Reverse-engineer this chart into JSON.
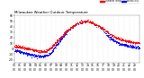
{
  "title": "Milwaukee Weather Outdoor Temperature",
  "legend_temp_color": "#ff0000",
  "legend_wind_color": "#0000ff",
  "legend_temp_label": "Outdoor Temp",
  "legend_wind_label": "Wind Chill",
  "bg_color": "#ffffff",
  "plot_bg_color": "#ffffff",
  "y_min": -25,
  "y_max": 60,
  "y_ticks": [
    -20,
    -10,
    0,
    10,
    20,
    30,
    40,
    50,
    60
  ],
  "temp_color": "#ff0000",
  "wind_color": "#0000ff",
  "dot_size": 0.4,
  "title_fontsize": 2.8,
  "tick_fontsize": 2.2,
  "vline_color": "#cccccc",
  "vline_style": "dotted",
  "temp_curve_hours": [
    0,
    1,
    2,
    3,
    4,
    5,
    6,
    7,
    8,
    9,
    10,
    11,
    12,
    13,
    14,
    15,
    16,
    17,
    18,
    19,
    20,
    21,
    22,
    23,
    24
  ],
  "temp_curve_vals": [
    5,
    3,
    1,
    -1,
    -3,
    -5,
    -4,
    2,
    12,
    22,
    32,
    40,
    46,
    50,
    50,
    47,
    42,
    36,
    28,
    22,
    18,
    15,
    13,
    11,
    10
  ],
  "wind_chill_vals": [
    -3,
    -5,
    -8,
    -10,
    -12,
    -14,
    -13,
    -8,
    6,
    18,
    30,
    39,
    45,
    49,
    50,
    47,
    42,
    34,
    22,
    15,
    10,
    7,
    5,
    3,
    2
  ]
}
